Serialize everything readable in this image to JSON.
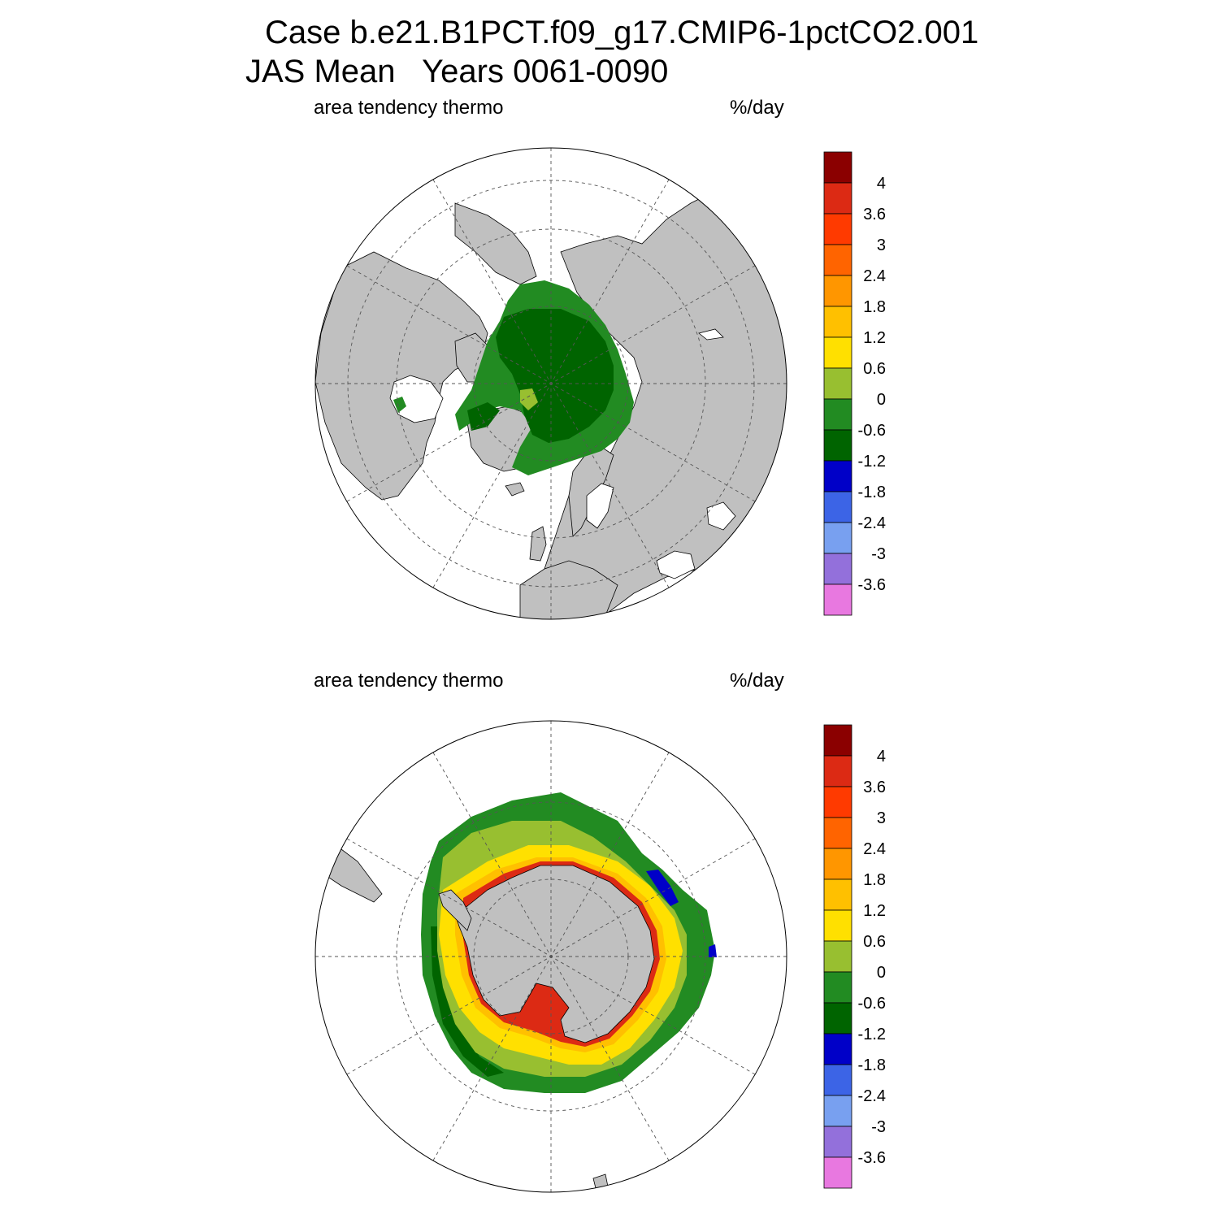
{
  "title_line1": "Case b.e21.B1PCT.f09_g17.CMIP6-1pctCO2.001",
  "title_line2": "JAS Mean   Years 0061-0090",
  "panels": [
    {
      "id": "north",
      "hemisphere": "Northern Hemisphere",
      "left_label": "area tendency thermo",
      "right_label": "%/day"
    },
    {
      "id": "south",
      "hemisphere": "Southern Hemisphere",
      "left_label": "area tendency thermo",
      "right_label": "%/day"
    }
  ],
  "colorbar": {
    "labels": [
      "4",
      "3.6",
      "3",
      "2.4",
      "1.8",
      "1.2",
      "0.6",
      "0",
      "-0.6",
      "-1.2",
      "-1.8",
      "-2.4",
      "-3",
      "-3.6"
    ],
    "colors": [
      "#8b0000",
      "#dc2a14",
      "#ff3a00",
      "#ff6400",
      "#ff9600",
      "#ffc000",
      "#ffe000",
      "#98bf30",
      "#228b22",
      "#006400",
      "#0000c8",
      "#3c64e6",
      "#78a0f0",
      "#9370db",
      "#e878e0"
    ]
  },
  "colors": {
    "land": "#c0c0c0",
    "ocean": "#ffffff",
    "grid": "#555555"
  }
}
